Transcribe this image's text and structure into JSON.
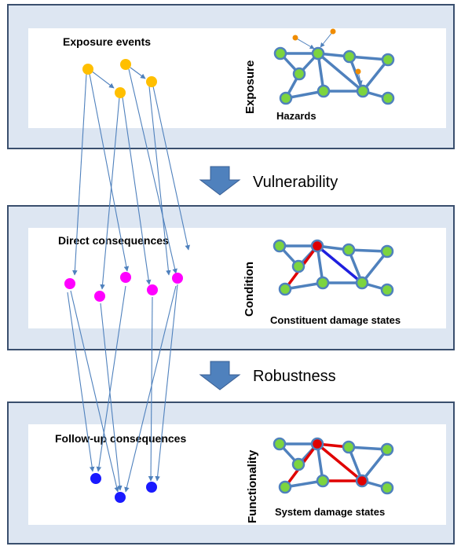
{
  "panels": [
    {
      "rotated_label": "Exposure",
      "heading": "Exposure events",
      "network_caption": "Hazards"
    },
    {
      "rotated_label": "Condition",
      "heading": "Direct consequences",
      "network_caption": "Constituent damage states"
    },
    {
      "rotated_label": "Functionality",
      "heading": "Follow-up consequences",
      "network_caption": "System damage states"
    }
  ],
  "transitions": [
    {
      "label": "Vulnerability"
    },
    {
      "label": "Robustness"
    }
  ],
  "colors": {
    "panel_border": "#3a4f6e",
    "panel_fill": "#dde6f2",
    "inner_box": "#ffffff",
    "arrow_fill": "#4f81bd",
    "network_edge": "#4f81bd",
    "network_node": "#7cd43f",
    "hazard_dot": "#f08c00",
    "exposure_event": "#ffbf00",
    "direct_consequence": "#ff00ff",
    "followup_consequence": "#1a1aff",
    "damaged_node": "#e00000",
    "damaged_edge": "#e00000",
    "stressed_edge": "#1f1fdf",
    "flow_arrow": "#4f81bd"
  }
}
